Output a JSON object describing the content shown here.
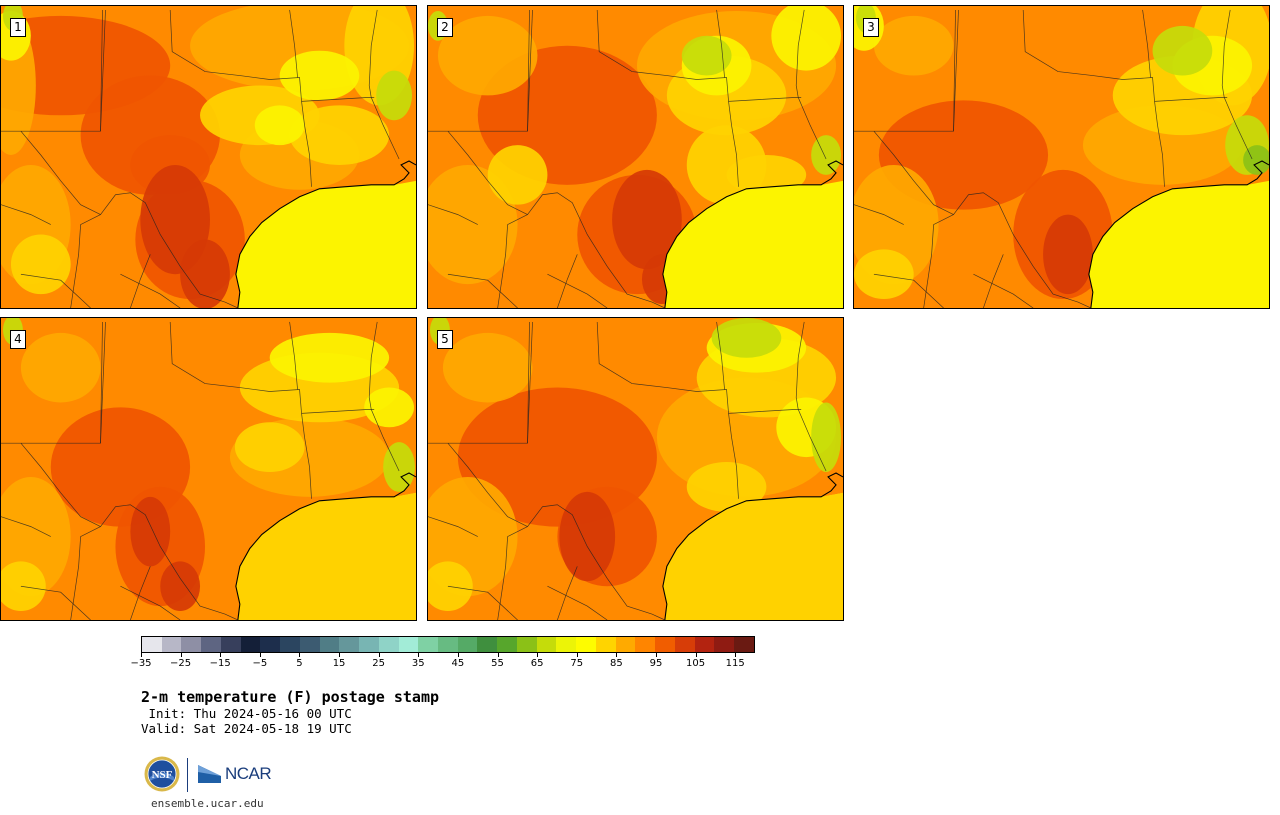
{
  "panels": [
    {
      "label": "1"
    },
    {
      "label": "2"
    },
    {
      "label": "3"
    },
    {
      "label": "4"
    },
    {
      "label": "5"
    }
  ],
  "colorbar": {
    "colors": [
      "#e6e6ec",
      "#b7b7c7",
      "#8e8fa5",
      "#5e6582",
      "#373f5c",
      "#141f38",
      "#1d2e4c",
      "#2b4560",
      "#3c5b71",
      "#507d86",
      "#65979b",
      "#78b5b3",
      "#8fd3c7",
      "#a2ecd7",
      "#7fd1a4",
      "#67bb82",
      "#55aa66",
      "#3f8f3e",
      "#57a62c",
      "#8bc117",
      "#c5dc0a",
      "#ecf407",
      "#fefc00",
      "#ffd400",
      "#ffaa00",
      "#ff8500",
      "#f15d00",
      "#d73d08",
      "#b32310",
      "#8f1b12",
      "#6a1a12"
    ],
    "tick_labels": [
      "−35",
      "−25",
      "−15",
      "−5",
      "5",
      "15",
      "25",
      "35",
      "45",
      "55",
      "65",
      "75",
      "85",
      "95",
      "105",
      "115"
    ]
  },
  "title": "2-m temperature (F) postage stamp",
  "init": " Init: Thu 2024-05-16 00 UTC",
  "valid": "Valid: Sat 2024-05-18 19 UTC",
  "logos": {
    "nsf": "NSF",
    "ncar": "NCAR"
  },
  "footer_url": "ensemble.ucar.edu"
}
